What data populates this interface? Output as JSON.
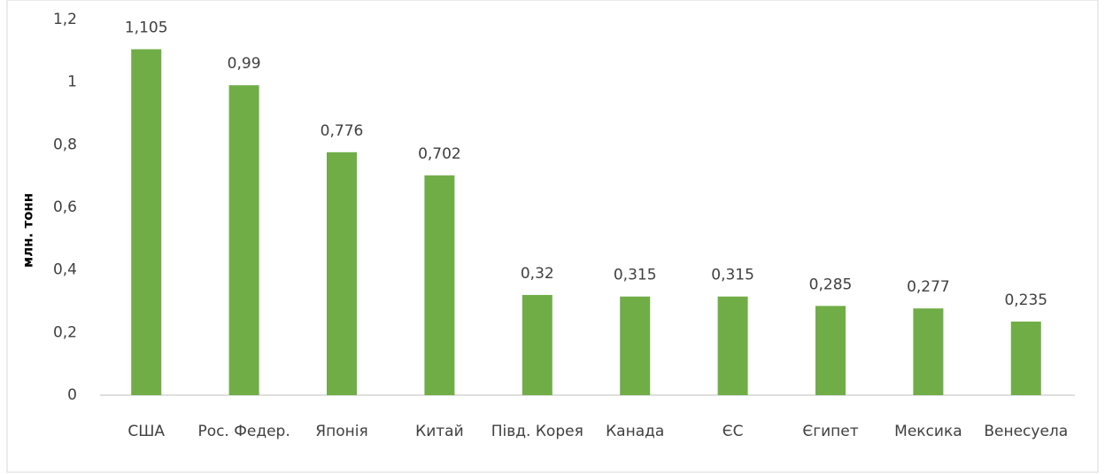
{
  "chart_data": {
    "type": "bar",
    "y_label": "млн. тонн",
    "categories": [
      "США",
      "Рос. Федер.",
      "Японія",
      "Китай",
      "Півд. Корея",
      "Канада",
      "ЄС",
      "Єгипет",
      "Мексика",
      "Венесуела"
    ],
    "values": [
      1.105,
      0.99,
      0.776,
      0.702,
      0.32,
      0.315,
      0.315,
      0.285,
      0.277,
      0.235
    ],
    "value_labels": [
      "1,105",
      "0,99",
      "0,776",
      "0,702",
      "0,32",
      "0,315",
      "0,315",
      "0,285",
      "0,277",
      "0,235"
    ],
    "color": "#70ad47",
    "ylim": [
      0,
      1.2
    ],
    "yticks": [
      0,
      {
        "value": 0.2,
        "label": "0,2"
      },
      {
        "value": 0.4,
        "label": "0,4"
      },
      {
        "value": 0.6,
        "label": "0,6"
      },
      {
        "value": 0.8,
        "label": "0,8"
      },
      1,
      {
        "value": 1.2,
        "label": "1,2"
      }
    ],
    "grid": false
  }
}
